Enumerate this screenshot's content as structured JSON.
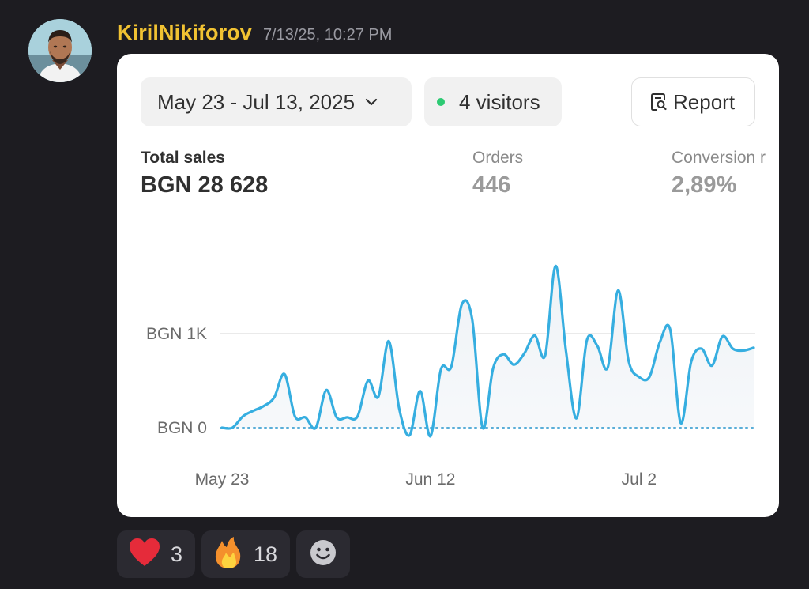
{
  "message": {
    "username": "KirilNikiforov",
    "timestamp": "7/13/25, 10:27 PM",
    "avatar_icon": "user-avatar"
  },
  "dashboard": {
    "date_range": "May 23 - Jul 13, 2025",
    "visitors": "4 visitors",
    "visitors_status_color": "#2dca73",
    "report_label": "Report",
    "metrics": [
      {
        "label": "Total sales",
        "value": "BGN 28 628"
      },
      {
        "label": "Orders",
        "value": "446"
      },
      {
        "label": "Conversion r",
        "value": "2,89%"
      }
    ]
  },
  "chart_data": {
    "type": "area",
    "x_tick_labels": [
      "May 23",
      "Jun 12",
      "Jul 2"
    ],
    "y_tick_labels": [
      "BGN 0",
      "BGN 1K"
    ],
    "ylim": [
      -100,
      1750
    ],
    "grid": true,
    "line_color": "#36aee0",
    "x_days": [
      0,
      1,
      2,
      3,
      4,
      5,
      6,
      7,
      8,
      9,
      10,
      11,
      12,
      13,
      14,
      15,
      16,
      17,
      18,
      19,
      20,
      21,
      22,
      23,
      24,
      25,
      26,
      27,
      28,
      29,
      30,
      31,
      32,
      33,
      34,
      35,
      36,
      37,
      38,
      39,
      40,
      41,
      42,
      43,
      44,
      45,
      46,
      47,
      48,
      49,
      50,
      51
    ],
    "values": [
      0,
      0,
      120,
      180,
      230,
      320,
      570,
      120,
      110,
      0,
      400,
      110,
      110,
      120,
      500,
      330,
      920,
      200,
      -80,
      390,
      -90,
      620,
      650,
      1310,
      1150,
      0,
      630,
      780,
      670,
      790,
      980,
      770,
      1720,
      810,
      100,
      930,
      870,
      640,
      1460,
      710,
      540,
      540,
      910,
      1040,
      50,
      700,
      840,
      660,
      970,
      840,
      820,
      850
    ]
  },
  "reactions": [
    {
      "emoji": "❤️",
      "name": "heart",
      "count": "3"
    },
    {
      "emoji": "🔥",
      "name": "fire",
      "count": "18"
    }
  ],
  "add_reaction_icon": "smiley-add-icon"
}
